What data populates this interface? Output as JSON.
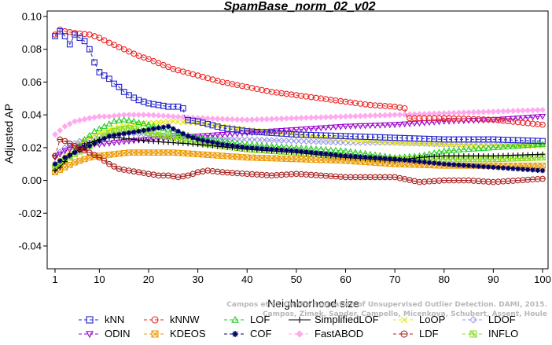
{
  "chart_data": {
    "type": "line",
    "title": "SpamBase_norm_02_v02",
    "xlabel": "Neighborhood size",
    "ylabel": "Adjusted AP",
    "xlim": [
      1,
      100
    ],
    "ylim": [
      -0.05,
      0.1
    ],
    "xticks": [
      1,
      10,
      20,
      30,
      40,
      50,
      60,
      70,
      80,
      90,
      100
    ],
    "yticks": [
      -0.04,
      -0.02,
      0.0,
      0.02,
      0.04,
      0.06,
      0.08,
      0.1
    ],
    "ytick_labels": [
      "-0.04",
      "-0.02",
      "0.00",
      "0.02",
      "0.04",
      "0.06",
      "0.08",
      "0.10"
    ],
    "grid": false,
    "legend_position": "bottom",
    "series": [
      {
        "name": "kNN",
        "color": "#2222cc",
        "marker": "square",
        "dashed": true,
        "points": [
          [
            1,
            0.088
          ],
          [
            2,
            0.091
          ],
          [
            3,
            0.088
          ],
          [
            4,
            0.083
          ],
          [
            5,
            0.089
          ],
          [
            6,
            0.087
          ],
          [
            7,
            0.085
          ],
          [
            8,
            0.08
          ],
          [
            9,
            0.072
          ],
          [
            10,
            0.066
          ],
          [
            11,
            0.064
          ],
          [
            12,
            0.062
          ],
          [
            13,
            0.059
          ],
          [
            14,
            0.057
          ],
          [
            15,
            0.054
          ],
          [
            16,
            0.052
          ],
          [
            18,
            0.049
          ],
          [
            20,
            0.047
          ],
          [
            22,
            0.046
          ],
          [
            24,
            0.045
          ],
          [
            26,
            0.045
          ],
          [
            27,
            0.044
          ],
          [
            27.5,
            0.037
          ],
          [
            30,
            0.036
          ],
          [
            35,
            0.032
          ],
          [
            40,
            0.03
          ],
          [
            50,
            0.028
          ],
          [
            60,
            0.027
          ],
          [
            70,
            0.026
          ],
          [
            80,
            0.025
          ],
          [
            90,
            0.025
          ],
          [
            100,
            0.024
          ]
        ]
      },
      {
        "name": "kNNW",
        "color": "#ee2222",
        "marker": "circle",
        "dashed": true,
        "points": [
          [
            1,
            0.089
          ],
          [
            2,
            0.092
          ],
          [
            3,
            0.091
          ],
          [
            5,
            0.09
          ],
          [
            8,
            0.089
          ],
          [
            10,
            0.087
          ],
          [
            12,
            0.084
          ],
          [
            15,
            0.08
          ],
          [
            18,
            0.076
          ],
          [
            20,
            0.074
          ],
          [
            25,
            0.068
          ],
          [
            30,
            0.064
          ],
          [
            35,
            0.06
          ],
          [
            40,
            0.057
          ],
          [
            45,
            0.054
          ],
          [
            50,
            0.052
          ],
          [
            55,
            0.05
          ],
          [
            60,
            0.048
          ],
          [
            65,
            0.046
          ],
          [
            70,
            0.045
          ],
          [
            72,
            0.044
          ],
          [
            72.5,
            0.038
          ],
          [
            80,
            0.038
          ],
          [
            90,
            0.037
          ],
          [
            100,
            0.034
          ]
        ]
      },
      {
        "name": "LOF",
        "color": "#22cc22",
        "marker": "triangle-up",
        "dashed": true,
        "points": [
          [
            1,
            0.007
          ],
          [
            3,
            0.012
          ],
          [
            5,
            0.018
          ],
          [
            7,
            0.025
          ],
          [
            9,
            0.03
          ],
          [
            11,
            0.033
          ],
          [
            13,
            0.036
          ],
          [
            15,
            0.037
          ],
          [
            17,
            0.036
          ],
          [
            20,
            0.034
          ],
          [
            25,
            0.03
          ],
          [
            30,
            0.026
          ],
          [
            40,
            0.022
          ],
          [
            50,
            0.02
          ],
          [
            60,
            0.018
          ],
          [
            65,
            0.016
          ],
          [
            70,
            0.014
          ],
          [
            75,
            0.015
          ],
          [
            80,
            0.018
          ],
          [
            90,
            0.02
          ],
          [
            100,
            0.022
          ]
        ]
      },
      {
        "name": "SimplifiedLOF",
        "color": "#000000",
        "marker": "plus",
        "dashed": false,
        "points": [
          [
            1,
            0.006
          ],
          [
            2,
            0.008
          ],
          [
            4,
            0.015
          ],
          [
            6,
            0.02
          ],
          [
            8,
            0.023
          ],
          [
            10,
            0.025
          ],
          [
            12,
            0.026
          ],
          [
            14,
            0.026
          ],
          [
            17,
            0.025
          ],
          [
            20,
            0.024
          ],
          [
            25,
            0.023
          ],
          [
            30,
            0.022
          ],
          [
            40,
            0.019
          ],
          [
            50,
            0.017
          ],
          [
            60,
            0.014
          ],
          [
            70,
            0.012
          ],
          [
            75,
            0.014
          ],
          [
            80,
            0.015
          ],
          [
            90,
            0.015
          ],
          [
            100,
            0.016
          ]
        ]
      },
      {
        "name": "LoOP",
        "color": "#e8e800",
        "marker": "x",
        "dashed": true,
        "points": [
          [
            1,
            0.01
          ],
          [
            3,
            0.015
          ],
          [
            5,
            0.02
          ],
          [
            8,
            0.026
          ],
          [
            10,
            0.029
          ],
          [
            13,
            0.032
          ],
          [
            16,
            0.034
          ],
          [
            20,
            0.035
          ],
          [
            25,
            0.036
          ],
          [
            30,
            0.035
          ],
          [
            40,
            0.031
          ],
          [
            50,
            0.028
          ],
          [
            60,
            0.025
          ],
          [
            70,
            0.023
          ],
          [
            80,
            0.022
          ],
          [
            90,
            0.021
          ],
          [
            100,
            0.021
          ]
        ]
      },
      {
        "name": "LDOF",
        "color": "#9999ee",
        "marker": "diamond",
        "dashed": true,
        "points": [
          [
            1,
            0.015
          ],
          [
            3,
            0.02
          ],
          [
            6,
            0.024
          ],
          [
            10,
            0.027
          ],
          [
            15,
            0.029
          ],
          [
            20,
            0.028
          ],
          [
            25,
            0.027
          ],
          [
            30,
            0.026
          ],
          [
            40,
            0.025
          ],
          [
            50,
            0.024
          ],
          [
            60,
            0.023
          ],
          [
            70,
            0.023
          ],
          [
            80,
            0.022
          ],
          [
            90,
            0.022
          ],
          [
            100,
            0.022
          ]
        ]
      },
      {
        "name": "ODIN",
        "color": "#9900cc",
        "marker": "triangle-down",
        "dashed": true,
        "points": [
          [
            1,
            0.014
          ],
          [
            3,
            0.018
          ],
          [
            5,
            0.02
          ],
          [
            8,
            0.022
          ],
          [
            10,
            0.022
          ],
          [
            13,
            0.023
          ],
          [
            16,
            0.024
          ],
          [
            20,
            0.025
          ],
          [
            25,
            0.026
          ],
          [
            30,
            0.027
          ],
          [
            35,
            0.028
          ],
          [
            40,
            0.029
          ],
          [
            50,
            0.031
          ],
          [
            60,
            0.033
          ],
          [
            70,
            0.034
          ],
          [
            80,
            0.036
          ],
          [
            90,
            0.037
          ],
          [
            100,
            0.039
          ]
        ]
      },
      {
        "name": "KDEOS",
        "color": "#ee9900",
        "marker": "square-x",
        "dashed": true,
        "points": [
          [
            1,
            0.005
          ],
          [
            3,
            0.008
          ],
          [
            5,
            0.011
          ],
          [
            8,
            0.014
          ],
          [
            10,
            0.015
          ],
          [
            13,
            0.016
          ],
          [
            16,
            0.017
          ],
          [
            20,
            0.017
          ],
          [
            25,
            0.017
          ],
          [
            30,
            0.016
          ],
          [
            40,
            0.014
          ],
          [
            50,
            0.013
          ],
          [
            60,
            0.012
          ],
          [
            70,
            0.01
          ],
          [
            80,
            0.009
          ],
          [
            90,
            0.009
          ],
          [
            100,
            0.009
          ]
        ]
      },
      {
        "name": "COF",
        "color": "#000066",
        "marker": "asterisk",
        "dashed": true,
        "points": [
          [
            1,
            0.01
          ],
          [
            3,
            0.014
          ],
          [
            5,
            0.017
          ],
          [
            8,
            0.021
          ],
          [
            10,
            0.024
          ],
          [
            12,
            0.027
          ],
          [
            14,
            0.028
          ],
          [
            16,
            0.029
          ],
          [
            18,
            0.03
          ],
          [
            20,
            0.031
          ],
          [
            22,
            0.032
          ],
          [
            24,
            0.033
          ],
          [
            26,
            0.03
          ],
          [
            28,
            0.027
          ],
          [
            30,
            0.025
          ],
          [
            35,
            0.022
          ],
          [
            40,
            0.02
          ],
          [
            50,
            0.018
          ],
          [
            60,
            0.015
          ],
          [
            70,
            0.013
          ],
          [
            80,
            0.01
          ],
          [
            90,
            0.008
          ],
          [
            100,
            0.006
          ]
        ]
      },
      {
        "name": "FastABOD",
        "color": "#ffaaee",
        "marker": "diamond-filled",
        "dashed": true,
        "points": [
          [
            1,
            0.028
          ],
          [
            3,
            0.033
          ],
          [
            5,
            0.036
          ],
          [
            8,
            0.038
          ],
          [
            10,
            0.039
          ],
          [
            12,
            0.039
          ],
          [
            15,
            0.04
          ],
          [
            20,
            0.04
          ],
          [
            25,
            0.039
          ],
          [
            30,
            0.038
          ],
          [
            40,
            0.037
          ],
          [
            50,
            0.038
          ],
          [
            60,
            0.039
          ],
          [
            70,
            0.04
          ],
          [
            80,
            0.041
          ],
          [
            90,
            0.042
          ],
          [
            100,
            0.043
          ]
        ]
      },
      {
        "name": "LDF",
        "color": "#aa2222",
        "marker": "circle-dot",
        "dashed": true,
        "points": [
          [
            1,
            0.015
          ],
          [
            2,
            0.025
          ],
          [
            3,
            0.024
          ],
          [
            5,
            0.021
          ],
          [
            8,
            0.017
          ],
          [
            10,
            0.014
          ],
          [
            12,
            0.01
          ],
          [
            14,
            0.007
          ],
          [
            16,
            0.006
          ],
          [
            18,
            0.005
          ],
          [
            20,
            0.004
          ],
          [
            22,
            0.003
          ],
          [
            24,
            0.003
          ],
          [
            26,
            0.002
          ],
          [
            28,
            0.003
          ],
          [
            30,
            0.005
          ],
          [
            32,
            0.006
          ],
          [
            35,
            0.005
          ],
          [
            40,
            0.004
          ],
          [
            45,
            0.003
          ],
          [
            50,
            0.004
          ],
          [
            55,
            0.003
          ],
          [
            60,
            0.002
          ],
          [
            65,
            0.002
          ],
          [
            70,
            0.002
          ],
          [
            75,
            -0.001
          ],
          [
            80,
            0.0
          ],
          [
            85,
            0.0
          ],
          [
            90,
            -0.001
          ],
          [
            95,
            0.0
          ],
          [
            100,
            0.001
          ]
        ]
      },
      {
        "name": "INFLO",
        "color": "#88dd22",
        "marker": "box-star",
        "dashed": true,
        "points": [
          [
            1,
            0.008
          ],
          [
            3,
            0.012
          ],
          [
            5,
            0.016
          ],
          [
            8,
            0.021
          ],
          [
            10,
            0.025
          ],
          [
            12,
            0.029
          ],
          [
            14,
            0.031
          ],
          [
            16,
            0.032
          ],
          [
            18,
            0.031
          ],
          [
            20,
            0.029
          ],
          [
            25,
            0.026
          ],
          [
            30,
            0.023
          ],
          [
            40,
            0.019
          ],
          [
            50,
            0.017
          ],
          [
            60,
            0.014
          ],
          [
            70,
            0.013
          ],
          [
            80,
            0.013
          ],
          [
            90,
            0.013
          ],
          [
            100,
            0.014
          ]
        ]
      }
    ],
    "legend_order": [
      "kNN",
      "kNNW",
      "LOF",
      "SimplifiedLOF",
      "LoOP",
      "LDOF",
      "ODIN",
      "KDEOS",
      "COF",
      "FastABOD",
      "LDF",
      "INFLO"
    ],
    "attribution": [
      "Campos et al. On the Evaluation of Unsupervised Outlier Detection. DAMI, 2015.",
      "Campos, Zimek, Sander, Campello, Micenkova, Schubert, Assent, Houle"
    ]
  }
}
